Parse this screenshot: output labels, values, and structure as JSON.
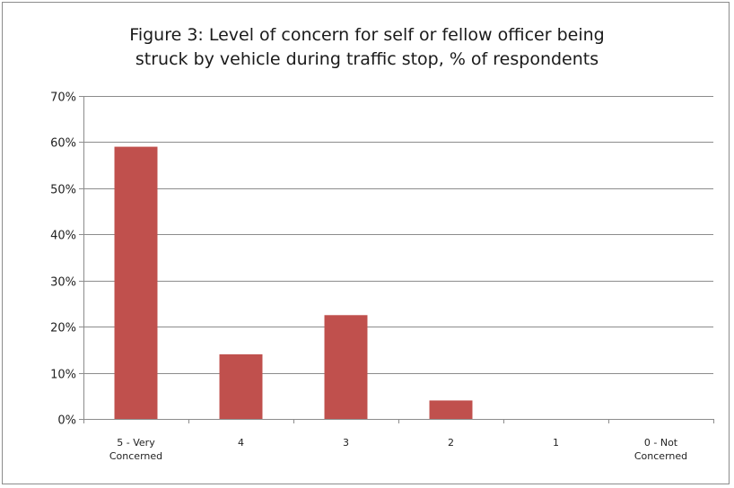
{
  "chart_data": {
    "type": "bar",
    "title_lines": [
      "Figure 3:  Level of concern for self or fellow officer being",
      "struck by vehicle during traffic stop, % of respondents"
    ],
    "categories": [
      [
        "5 - Very",
        "Concerned"
      ],
      [
        "4"
      ],
      [
        "3"
      ],
      [
        "2"
      ],
      [
        "1"
      ],
      [
        "0 - Not",
        "Concerned"
      ]
    ],
    "values": [
      59,
      14,
      22.5,
      4,
      0,
      0
    ],
    "ylim": [
      0,
      70
    ],
    "yticks": [
      0,
      10,
      20,
      30,
      40,
      50,
      60,
      70
    ],
    "ytick_labels": [
      "0%",
      "10%",
      "20%",
      "30%",
      "40%",
      "50%",
      "60%",
      "70%"
    ],
    "grid": true,
    "xlabel": "",
    "ylabel": "",
    "colors": {
      "bar": "#c0504d",
      "grid": "#8c8c8c",
      "axis": "#8c8c8c"
    }
  }
}
